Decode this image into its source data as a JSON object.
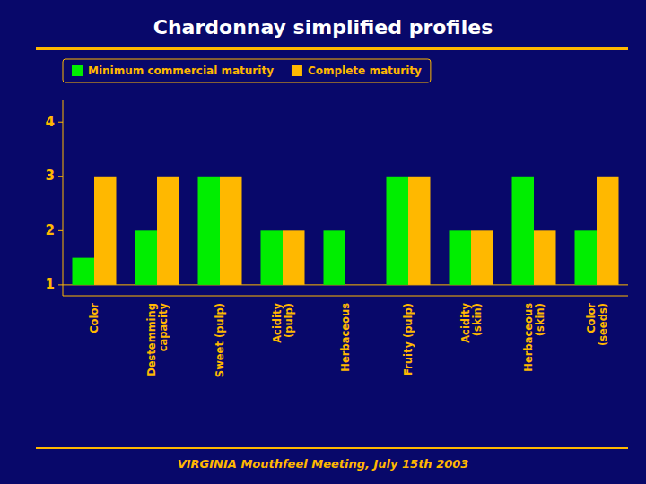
{
  "chart_data": {
    "type": "bar",
    "title": "Chardonnay simplified profiles",
    "subtitle": "VIRGINIA Mouthfeel Meeting, July 15th 2003",
    "categories": [
      "Color",
      "Destemming\ncapacity",
      "Sweet (pulp)",
      "Acidity\n(pulp)",
      "Herbaceous",
      "Fruity (pulp)",
      "Acidity\n(skin)",
      "Herbaceous\n(skin)",
      "Color\n(seeds)"
    ],
    "series": [
      {
        "name": "Minimum commercial maturity",
        "color": "#00EE00",
        "values": [
          1.5,
          2,
          3,
          2,
          2,
          3,
          2,
          3,
          2
        ]
      },
      {
        "name": "Complete maturity",
        "color": "#FFB800",
        "values": [
          3,
          3,
          3,
          2,
          1,
          3,
          2,
          2,
          3
        ]
      }
    ],
    "ylim": [
      0.8,
      4.4
    ],
    "yticks": [
      1,
      2,
      3,
      4
    ],
    "grid": false,
    "legend": "upper left"
  }
}
